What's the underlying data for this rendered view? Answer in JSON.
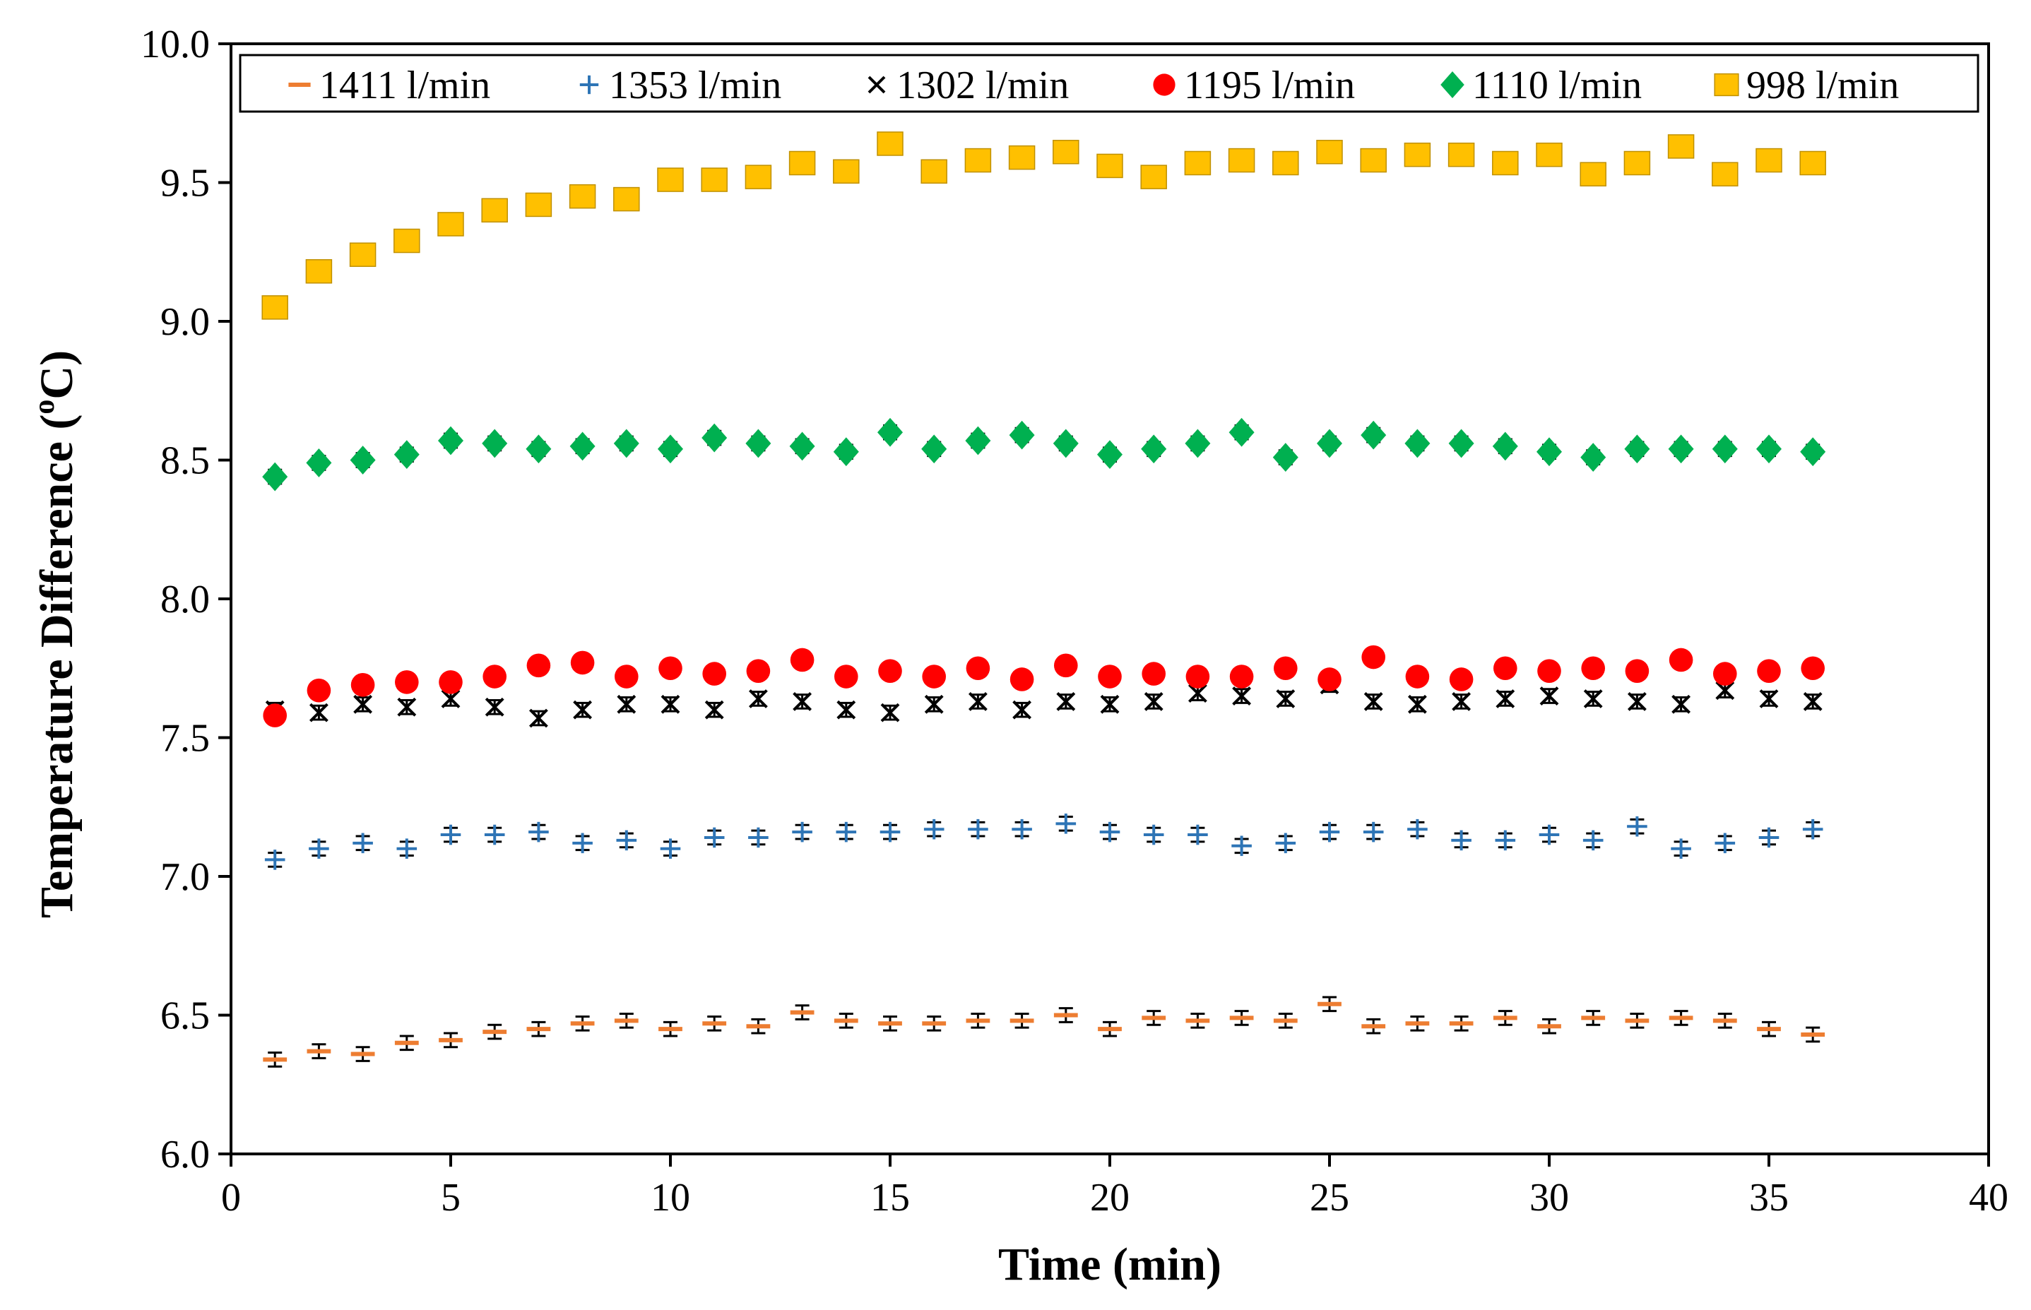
{
  "chart_data": {
    "type": "scatter",
    "title": "",
    "xlabel": "Time (min)",
    "ylabel": "Temperature Difference (",
    "ylabel_sup": "o",
    "ylabel_end": "C)",
    "xlim": [
      0,
      40
    ],
    "ylim": [
      6.0,
      10.0
    ],
    "xticks": [
      0,
      5,
      10,
      15,
      20,
      25,
      30,
      35,
      40
    ],
    "yticks": [
      "6.0",
      "6.5",
      "7.0",
      "7.5",
      "8.0",
      "8.5",
      "9.0",
      "9.5",
      "10.0"
    ],
    "grid": false,
    "legend_position": "top",
    "x": [
      1,
      2,
      3,
      4,
      5,
      6,
      7,
      8,
      9,
      10,
      11,
      12,
      13,
      14,
      15,
      16,
      17,
      18,
      19,
      20,
      21,
      22,
      23,
      24,
      25,
      26,
      27,
      28,
      29,
      30,
      31,
      32,
      33,
      34,
      35,
      36
    ],
    "series": [
      {
        "name": "1411 l/min",
        "marker": "dash",
        "color": "#ED7D31",
        "error": 0.025,
        "values": [
          6.34,
          6.37,
          6.36,
          6.4,
          6.41,
          6.44,
          6.45,
          6.47,
          6.48,
          6.45,
          6.47,
          6.46,
          6.51,
          6.48,
          6.47,
          6.47,
          6.48,
          6.48,
          6.5,
          6.45,
          6.49,
          6.48,
          6.49,
          6.48,
          6.54,
          6.46,
          6.47,
          6.47,
          6.49,
          6.46,
          6.49,
          6.48,
          6.49,
          6.48,
          6.45,
          6.43
        ]
      },
      {
        "name": "1353 l/min",
        "marker": "plus",
        "color": "#2E75B6",
        "error": 0.025,
        "values": [
          7.06,
          7.1,
          7.12,
          7.1,
          7.15,
          7.15,
          7.16,
          7.12,
          7.13,
          7.1,
          7.14,
          7.14,
          7.16,
          7.16,
          7.16,
          7.17,
          7.17,
          7.17,
          7.19,
          7.16,
          7.15,
          7.15,
          7.11,
          7.12,
          7.16,
          7.16,
          7.17,
          7.13,
          7.13,
          7.15,
          7.13,
          7.18,
          7.1,
          7.12,
          7.14,
          7.17
        ]
      },
      {
        "name": "1302 l/min",
        "marker": "x",
        "color": "#000000",
        "error": 0.025,
        "values": [
          7.6,
          7.59,
          7.62,
          7.61,
          7.64,
          7.61,
          7.57,
          7.6,
          7.62,
          7.62,
          7.6,
          7.64,
          7.63,
          7.6,
          7.59,
          7.62,
          7.63,
          7.6,
          7.63,
          7.62,
          7.63,
          7.66,
          7.65,
          7.64,
          7.69,
          7.63,
          7.62,
          7.63,
          7.64,
          7.65,
          7.64,
          7.63,
          7.62,
          7.67,
          7.64,
          7.63
        ]
      },
      {
        "name": "1195 l/min",
        "marker": "circle",
        "color": "#FF0000",
        "error": 0.025,
        "values": [
          7.58,
          7.67,
          7.69,
          7.7,
          7.7,
          7.72,
          7.76,
          7.77,
          7.72,
          7.75,
          7.73,
          7.74,
          7.78,
          7.72,
          7.74,
          7.72,
          7.75,
          7.71,
          7.76,
          7.72,
          7.73,
          7.72,
          7.72,
          7.75,
          7.71,
          7.79,
          7.72,
          7.71,
          7.75,
          7.74,
          7.75,
          7.74,
          7.78,
          7.73,
          7.74,
          7.75
        ]
      },
      {
        "name": "1110 l/min",
        "marker": "diamond",
        "color": "#00B050",
        "error": 0.025,
        "values": [
          8.44,
          8.49,
          8.5,
          8.52,
          8.57,
          8.56,
          8.54,
          8.55,
          8.56,
          8.54,
          8.58,
          8.56,
          8.55,
          8.53,
          8.6,
          8.54,
          8.57,
          8.59,
          8.56,
          8.52,
          8.54,
          8.56,
          8.6,
          8.51,
          8.56,
          8.59,
          8.56,
          8.56,
          8.55,
          8.53,
          8.51,
          8.54,
          8.54,
          8.54,
          8.54,
          8.53
        ]
      },
      {
        "name": "998 l/min",
        "marker": "square",
        "color": "#FFC000",
        "error": 0.025,
        "values": [
          9.05,
          9.18,
          9.24,
          9.29,
          9.35,
          9.4,
          9.42,
          9.45,
          9.44,
          9.51,
          9.51,
          9.52,
          9.57,
          9.54,
          9.64,
          9.54,
          9.58,
          9.59,
          9.61,
          9.56,
          9.52,
          9.57,
          9.58,
          9.57,
          9.61,
          9.58,
          9.6,
          9.6,
          9.57,
          9.6,
          9.53,
          9.57,
          9.63,
          9.53,
          9.58,
          9.57
        ]
      }
    ]
  }
}
